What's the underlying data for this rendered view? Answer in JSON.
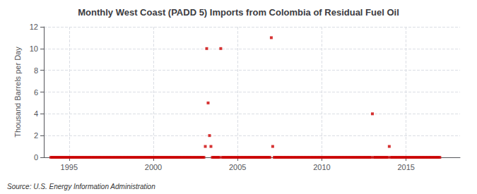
{
  "chart_data": {
    "type": "scatter",
    "title": "Monthly West Coast (PADD 5) Imports from Colombia of Residual Fuel Oil",
    "ylabel": "Thousand Barrels per Day",
    "annotations": [
      "Source: U.S. Energy Information Administration"
    ],
    "color": "#cc0000",
    "marker": "square",
    "grid": true,
    "xlim": [
      1993.5,
      2018.2
    ],
    "xticks": [
      1995,
      2000,
      2005,
      2010,
      2015
    ],
    "ylim": [
      0,
      12
    ],
    "yticks": [
      0,
      2,
      4,
      6,
      8,
      10,
      12
    ],
    "x": [
      1993.917,
      1994.0,
      1994.083,
      1994.167,
      1994.25,
      1994.333,
      1994.417,
      1994.5,
      1994.583,
      1994.667,
      1994.75,
      1994.833,
      1994.917,
      1995.0,
      1995.083,
      1995.167,
      1995.25,
      1995.333,
      1995.417,
      1995.5,
      1995.583,
      1995.667,
      1995.75,
      1995.833,
      1995.917,
      1996.0,
      1996.083,
      1996.167,
      1996.25,
      1996.333,
      1996.417,
      1996.5,
      1996.583,
      1996.667,
      1996.75,
      1996.833,
      1996.917,
      1997.0,
      1997.083,
      1997.167,
      1997.25,
      1997.333,
      1997.417,
      1997.5,
      1997.583,
      1997.667,
      1997.75,
      1997.833,
      1997.917,
      1998.0,
      1998.083,
      1998.167,
      1998.25,
      1998.333,
      1998.417,
      1998.5,
      1998.583,
      1998.667,
      1998.75,
      1998.833,
      1998.917,
      1999.0,
      1999.083,
      1999.167,
      1999.25,
      1999.333,
      1999.417,
      1999.5,
      1999.583,
      1999.667,
      1999.75,
      1999.833,
      1999.917,
      2000.0,
      2000.083,
      2000.167,
      2000.25,
      2000.333,
      2000.417,
      2000.5,
      2000.583,
      2000.667,
      2000.75,
      2000.833,
      2000.917,
      2001.0,
      2001.083,
      2001.167,
      2001.25,
      2001.333,
      2001.417,
      2001.5,
      2001.583,
      2001.667,
      2001.75,
      2001.833,
      2001.917,
      2002.0,
      2002.083,
      2002.167,
      2002.25,
      2002.333,
      2002.417,
      2002.5,
      2002.583,
      2002.667,
      2002.75,
      2002.833,
      2002.917,
      2003.0,
      2003.083,
      2003.167,
      2003.25,
      2003.333,
      2003.417,
      2003.5,
      2003.583,
      2003.667,
      2003.75,
      2003.833,
      2003.917,
      2004.0,
      2004.083,
      2004.167,
      2004.25,
      2004.333,
      2004.417,
      2004.5,
      2004.583,
      2004.667,
      2004.75,
      2004.833,
      2004.917,
      2005.0,
      2005.083,
      2005.167,
      2005.25,
      2005.333,
      2005.417,
      2005.5,
      2005.583,
      2005.667,
      2005.75,
      2005.833,
      2005.917,
      2006.0,
      2006.083,
      2006.167,
      2006.25,
      2006.333,
      2006.417,
      2006.5,
      2006.583,
      2006.667,
      2006.75,
      2006.833,
      2006.917,
      2007.0,
      2007.083,
      2007.167,
      2007.25,
      2007.333,
      2007.417,
      2007.5,
      2007.583,
      2007.667,
      2007.75,
      2007.833,
      2007.917,
      2008.0,
      2008.083,
      2008.167,
      2008.25,
      2008.333,
      2008.417,
      2008.5,
      2008.583,
      2008.667,
      2008.75,
      2008.833,
      2008.917,
      2009.0,
      2009.083,
      2009.167,
      2009.25,
      2009.333,
      2009.417,
      2009.5,
      2009.583,
      2009.667,
      2009.75,
      2009.833,
      2009.917,
      2010.0,
      2010.083,
      2010.167,
      2010.25,
      2010.333,
      2010.417,
      2010.5,
      2010.583,
      2010.667,
      2010.75,
      2010.833,
      2010.917,
      2011.0,
      2011.083,
      2011.167,
      2011.25,
      2011.333,
      2011.417,
      2011.5,
      2011.583,
      2011.667,
      2011.75,
      2011.833,
      2011.917,
      2012.0,
      2012.083,
      2012.167,
      2012.25,
      2012.333,
      2012.417,
      2012.5,
      2012.583,
      2012.667,
      2012.75,
      2012.833,
      2012.917,
      2013.0,
      2013.083,
      2013.167,
      2013.25,
      2013.333,
      2013.417,
      2013.5,
      2013.583,
      2013.667,
      2013.75,
      2013.833,
      2013.917,
      2014.0,
      2014.083,
      2014.167,
      2014.25,
      2014.333,
      2014.417,
      2014.5,
      2014.583,
      2014.667,
      2014.75,
      2014.833,
      2014.917,
      2015.0,
      2015.083,
      2015.167,
      2015.25,
      2015.333,
      2015.417,
      2015.5,
      2015.583,
      2015.667,
      2015.75,
      2015.833,
      2015.917,
      2016.0,
      2016.083,
      2016.167,
      2016.25,
      2016.333,
      2016.417,
      2016.5,
      2016.583,
      2016.667,
      2016.75,
      2016.833,
      2016.917,
      2017.0
    ],
    "values": [
      0,
      0,
      0,
      0,
      0,
      0,
      0,
      0,
      0,
      0,
      0,
      0,
      0,
      0,
      0,
      0,
      0,
      0,
      0,
      0,
      0,
      0,
      0,
      0,
      0,
      0,
      0,
      0,
      0,
      0,
      0,
      0,
      0,
      0,
      0,
      0,
      0,
      0,
      0,
      0,
      0,
      0,
      0,
      0,
      0,
      0,
      0,
      0,
      0,
      0,
      0,
      0,
      0,
      0,
      0,
      0,
      0,
      0,
      0,
      0,
      0,
      0,
      0,
      0,
      0,
      0,
      0,
      0,
      0,
      0,
      0,
      0,
      0,
      0,
      0,
      0,
      0,
      0,
      0,
      0,
      0,
      0,
      0,
      0,
      0,
      0,
      0,
      0,
      0,
      0,
      0,
      0,
      0,
      0,
      0,
      0,
      0,
      0,
      0,
      0,
      0,
      0,
      0,
      0,
      0,
      0,
      0,
      0,
      0,
      0,
      1,
      10,
      5,
      2,
      1,
      0,
      0,
      0,
      0,
      0,
      0,
      10,
      0,
      0,
      0,
      0,
      0,
      0,
      0,
      0,
      0,
      0,
      0,
      0,
      0,
      0,
      0,
      0,
      0,
      0,
      0,
      0,
      0,
      0,
      0,
      0,
      0,
      0,
      0,
      0,
      0,
      0,
      0,
      0,
      0,
      0,
      0,
      11,
      1,
      0,
      0,
      0,
      0,
      0,
      0,
      0,
      0,
      0,
      0,
      0,
      0,
      0,
      0,
      0,
      0,
      0,
      0,
      0,
      0,
      0,
      0,
      0,
      0,
      0,
      0,
      0,
      0,
      0,
      0,
      0,
      0,
      0,
      0,
      0,
      0,
      0,
      0,
      0,
      0,
      0,
      0,
      0,
      0,
      0,
      0,
      0,
      0,
      0,
      0,
      0,
      0,
      0,
      0,
      0,
      0,
      0,
      0,
      0,
      0,
      0,
      0,
      0,
      0,
      0,
      0,
      0,
      0,
      0,
      0,
      4,
      0,
      0,
      0,
      0,
      0,
      0,
      0,
      0,
      0,
      0,
      0,
      1,
      0,
      0,
      0,
      0,
      0,
      0,
      0,
      0,
      0,
      0,
      0,
      0,
      0,
      0,
      0,
      0,
      0,
      0,
      0,
      0,
      0,
      0,
      0,
      0,
      0,
      0,
      0,
      0,
      0,
      0,
      0,
      0,
      0,
      0,
      0,
      0
    ]
  }
}
